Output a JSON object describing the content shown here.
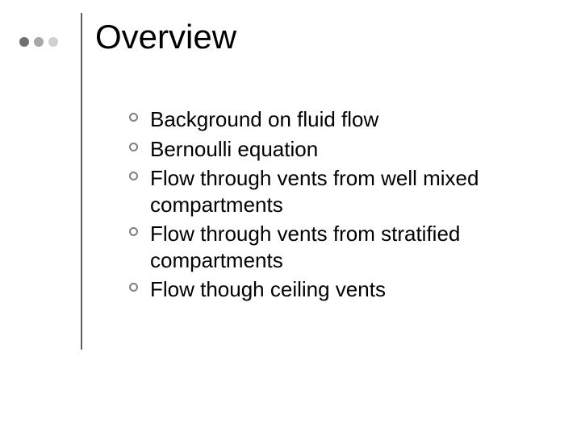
{
  "slide": {
    "title": "Overview",
    "bullets": [
      "Background on fluid flow",
      "Bernoulli equation",
      "Flow through vents from well mixed compartments",
      "Flow through vents from stratified compartments",
      "Flow though ceiling vents"
    ]
  },
  "style": {
    "background_color": "#ffffff",
    "title_fontsize": 42,
    "title_color": "#000000",
    "body_fontsize": 26,
    "body_color": "#000000",
    "bullet_ring_color": "#808080",
    "rule_color": "#606060",
    "decor_dot_colors": [
      "#707070",
      "#a8a8a8",
      "#d0d0d0"
    ],
    "decor_dot_diameter": 12,
    "slide_width": 720,
    "slide_height": 540
  }
}
